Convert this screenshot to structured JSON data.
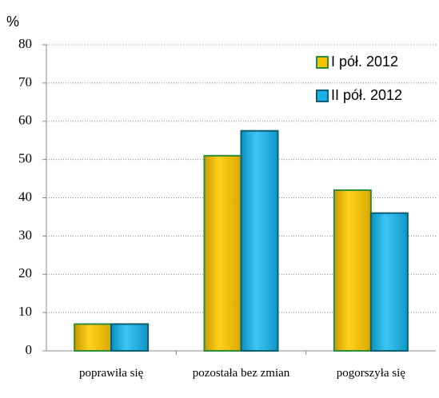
{
  "chart_data": {
    "type": "bar",
    "ylabel": "%",
    "categories": [
      "poprawiła się",
      "pozostała bez zmian",
      "pogorszyła się"
    ],
    "series": [
      {
        "name": "I pół. 2012",
        "color": "#f5c400",
        "values": [
          7,
          51,
          42
        ]
      },
      {
        "name": "II pół. 2012",
        "color": "#1ab0e8",
        "values": [
          7,
          57.5,
          36
        ]
      }
    ],
    "ylim": [
      0,
      80
    ],
    "yticks": [
      0,
      10,
      20,
      30,
      40,
      50,
      60,
      70,
      80
    ],
    "grid": true,
    "legend": "upper right"
  }
}
